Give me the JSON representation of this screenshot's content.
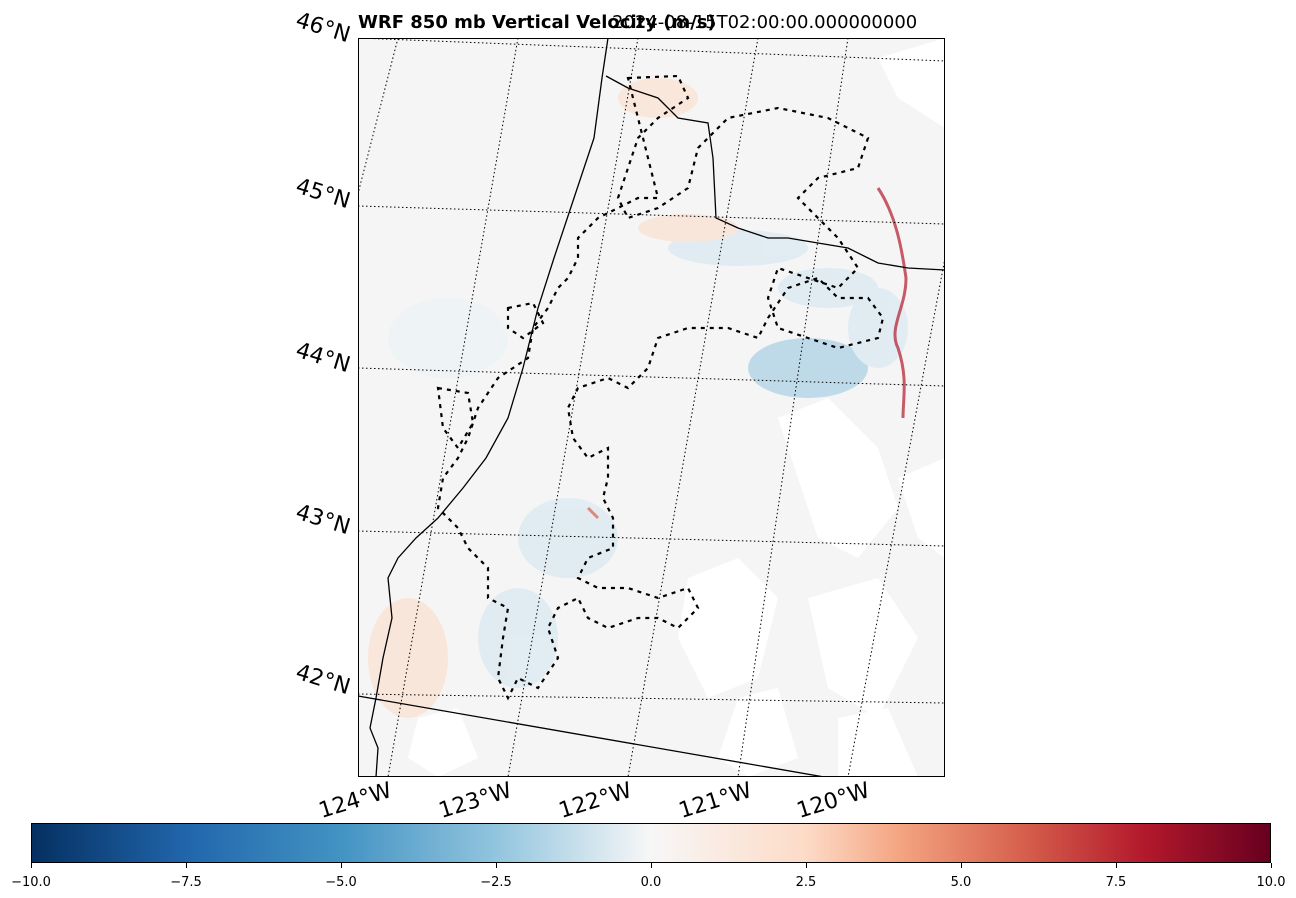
{
  "title": {
    "left": "WRF 850 mb Vertical Velocity (m/s)",
    "right": "2024-08-15T02:00:00.000000000"
  },
  "map": {
    "lat_labels": [
      "46°N",
      "45°N",
      "44°N",
      "43°N",
      "42°N"
    ],
    "lon_labels": [
      "124°W",
      "123°W",
      "122°W",
      "121°W",
      "120°W"
    ],
    "gridline_style": "dotted",
    "features": [
      "coastline",
      "state-borders",
      "fire-perimeters"
    ]
  },
  "colorbar": {
    "colormap": "RdBu_r",
    "min": -10.0,
    "max": 10.0,
    "tick_labels": [
      "−10.0",
      "−7.5",
      "−5.0",
      "−2.5",
      "0.0",
      "2.5",
      "5.0",
      "7.5",
      "10.0"
    ],
    "colors": {
      "low": "#053061",
      "mid": "#f7f7f7",
      "high": "#67001f"
    }
  }
}
